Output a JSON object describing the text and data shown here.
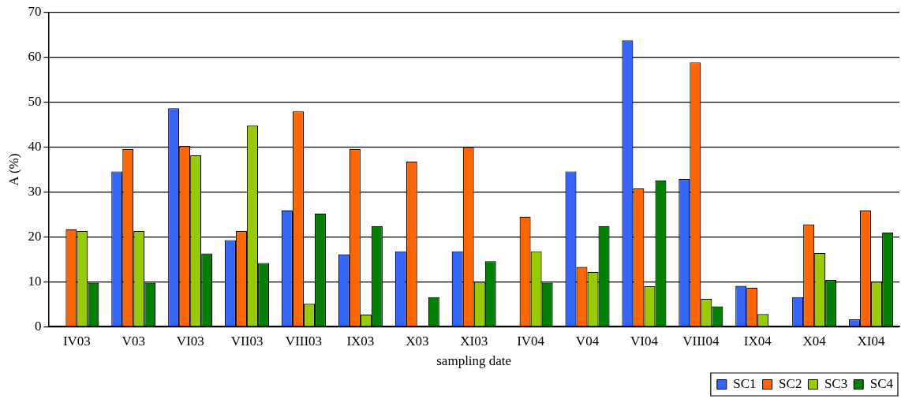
{
  "chart_data": {
    "type": "bar",
    "xlabel": "sampling date",
    "ylabel": "A (%)",
    "categories": [
      "IV03",
      "V03",
      "VI03",
      "VII03",
      "VIII03",
      "IX03",
      "X03",
      "XI03",
      "IV04",
      "V04",
      "VI04",
      "VIII04",
      "IX04",
      "X04",
      "XI04"
    ],
    "series": [
      {
        "name": "SC1",
        "color": "#3366ff",
        "values": [
          null,
          34.6,
          48.7,
          19.3,
          25.9,
          16.1,
          16.8,
          16.8,
          null,
          34.6,
          63.8,
          32.9,
          9.1,
          6.6,
          1.6
        ]
      },
      {
        "name": "SC2",
        "color": "#ff6600",
        "values": [
          21.7,
          39.6,
          40.3,
          21.3,
          48,
          39.6,
          36.8,
          40,
          24.5,
          13.3,
          30.8,
          58.9,
          8.7,
          22.8,
          25.9
        ]
      },
      {
        "name": "SC3",
        "color": "#99cc00",
        "values": [
          21.3,
          21.3,
          38.2,
          44.8,
          5.1,
          2.7,
          null,
          10,
          16.8,
          12.2,
          9,
          6.2,
          2.8,
          16.4,
          10
        ]
      },
      {
        "name": "SC4",
        "color": "#008000",
        "values": [
          9.8,
          9.8,
          16.3,
          14.2,
          25.2,
          22.4,
          6.6,
          14.6,
          9.8,
          22.4,
          32.6,
          4.5,
          null,
          10.4,
          21
        ]
      }
    ],
    "ylim": [
      0,
      70
    ],
    "yticks": [
      0,
      10,
      20,
      30,
      40,
      50,
      60,
      70
    ],
    "grid": "y",
    "legend": "bottom right"
  }
}
